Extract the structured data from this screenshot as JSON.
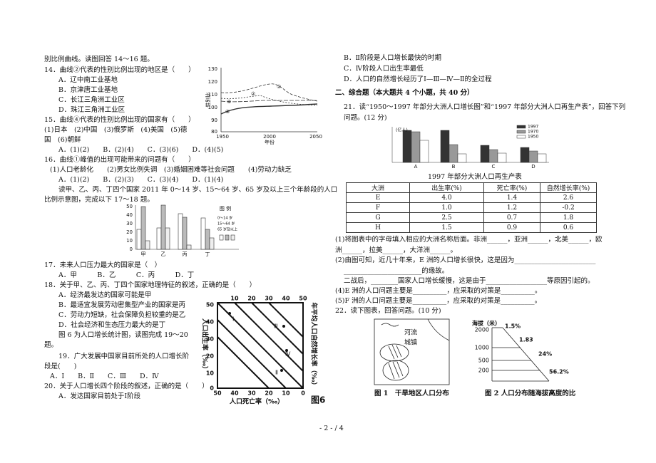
{
  "left_lines": [
    "别比例曲线。读图回答 14～16 题。",
    "14．曲线②代表的性别比例出现的地区是（　　）",
    "A．辽中南工业基地",
    "B．京津唐工业基地",
    "C．长江三角洲工业区",
    "D．珠江三角洲工业区",
    "15．曲线④代表的性别比例出现的国家有（　　）",
    "(1)日本　(2)中国　(3)俄罗斯　(4)美国　(5)德",
    "国　(6)朝鲜",
    "A．(1)(2)　　B．(2)(4)　　C．(3)(6)　　D．(4)(5)",
    "16．曲线①峰值的出现可能带来的问题有（　　）",
    "(1)人口老龄化　　(2)男女比例失调　(3)婚姻困难等社会问题　　(4)劳动力缺乏",
    "A．(1)(2)　　B．(2)(3)　　C．(3)(4)　　D．(1)(4)",
    "读甲、乙、丙、丁四个国家 2011 年 0～14 岁、15～64 岁、65 岁及以上三个年龄段的人口",
    "比例示意图，完成以下 17～18 题。",
    "17．未来人口压力最大的国家是（　）",
    "A．甲　　　B．乙　　　C．丙　　　D．丁",
    "18．关于甲、乙、丙、丁四个国家地理特征的叙述，正确的是（　　）",
    "A．经济最发达的国家可能是甲",
    "B．最适宜发展劳动密集型产业的国家是丙",
    "C．劳动力短缺，社会保障负担较重的是乙",
    "D．社会经济和生态压力最大的是丁",
    "图 6 为人口增长统计图，读图完成 19～20",
    "题。",
    "19．广大发展中国家目前所处的人口增长阶",
    "段是(　　)",
    "A．Ⅰ　　B．Ⅱ　　C．Ⅲ　　D．Ⅳ",
    "20．关于人口增长四个阶段的叙述，正确的是（　　）",
    "A．发达国家目前处于Ⅰ阶段"
  ],
  "right_lines": [
    "B．Ⅱ阶段是人口增长最快的时期",
    "C．Ⅳ阶段人口出生率最低",
    "D．人口的自然增长经历了Ⅰ—Ⅲ—Ⅳ—Ⅱ的全过程",
    "二、综合题（本大题共 4 个小题，共 40 分）",
    "21．读“1950～1997 年部分大洲人口增长图”和“1997 年部分大洲人口再生产表”，回答下列",
    "问题。(12 分)",
    "(1)将图表中的字母填入相应的大洲名称后面。非洲______，亚洲______，北美______，欧",
    "洲______，拉美______，大洋洲______。",
    "(2)由图可知，近几十年来，E 洲的人口增长很快，这是因为________________________",
    "_______________________的缘故。",
    "二战后，________国家人口增长缓慢，这是由于__________________等原因引起的。",
    "(4)E 洲的人口问题主要是__________，应采取的对策是__________。",
    "(5)F 洲的人口问题主要是__________，应采取的对策是__________。",
    "22．读下图表，回答问题。(10 分)"
  ],
  "fig_sex_ratio": {
    "y_label": "性别比",
    "x_label": "年份",
    "yticks": [
      "130",
      "120",
      "110",
      "100",
      "90",
      "80"
    ],
    "xticks": [
      "1950",
      "2000",
      "2050"
    ],
    "curves": [
      "①",
      "②",
      "③",
      "④"
    ]
  },
  "fig_age": {
    "yticks": [
      "50",
      "40",
      "30",
      "20",
      "10",
      "0"
    ],
    "categories": [
      "甲",
      "乙",
      "丙",
      "丁"
    ],
    "legend_title": "图 例",
    "legend": [
      "0～14 岁",
      "15～64 岁",
      "65 岁及以上"
    ]
  },
  "fig6": {
    "title": "图6",
    "left_label": "人口出生率（‰）",
    "right_label": "年平均人口自然增长率（‰）",
    "bottom_label": "人口死亡率（‰）",
    "left_ticks": [
      "50",
      "40",
      "30",
      "20",
      "10",
      "0"
    ],
    "top_ticks": [
      "10",
      "20",
      "30",
      "40",
      "50"
    ],
    "bottom_ticks": [
      "50",
      "40",
      "30",
      "20",
      "10",
      "0"
    ],
    "stages": [
      "Ⅰ",
      "Ⅱ",
      "Ⅲ",
      "Ⅳ"
    ]
  },
  "fig_growth": {
    "unit": "(亿人)",
    "categories": [
      "A",
      "B",
      "C",
      "D"
    ],
    "legend": [
      "1997",
      "1970",
      "1950"
    ]
  },
  "table": {
    "title": "1997 年部分大洲人口再生产表",
    "header": [
      "大洲",
      "出生率(%)",
      "死亡率(%)",
      "自然增长率(%)"
    ],
    "rows": [
      [
        "E",
        "4.0",
        "1.4",
        "2.6"
      ],
      [
        "F",
        "1.0",
        "1.2",
        "-0.2"
      ],
      [
        "G",
        "2.5",
        "0.7",
        "1.8"
      ],
      [
        "H",
        "1.5",
        "0.9",
        "0.6"
      ]
    ]
  },
  "fig1": {
    "labels": [
      "河流",
      "城镇"
    ],
    "caption": "图 1　干旱地区人口分布"
  },
  "fig2": {
    "axis_label": "海拔（米）",
    "ticks": [
      "2000",
      "1000",
      "500",
      "200"
    ],
    "shares": [
      "1.5%",
      "1.83",
      "24%",
      "56.2%"
    ],
    "caption": "图 2 人口分布随海拔高度的比"
  },
  "footer": "- 2 - / 4"
}
